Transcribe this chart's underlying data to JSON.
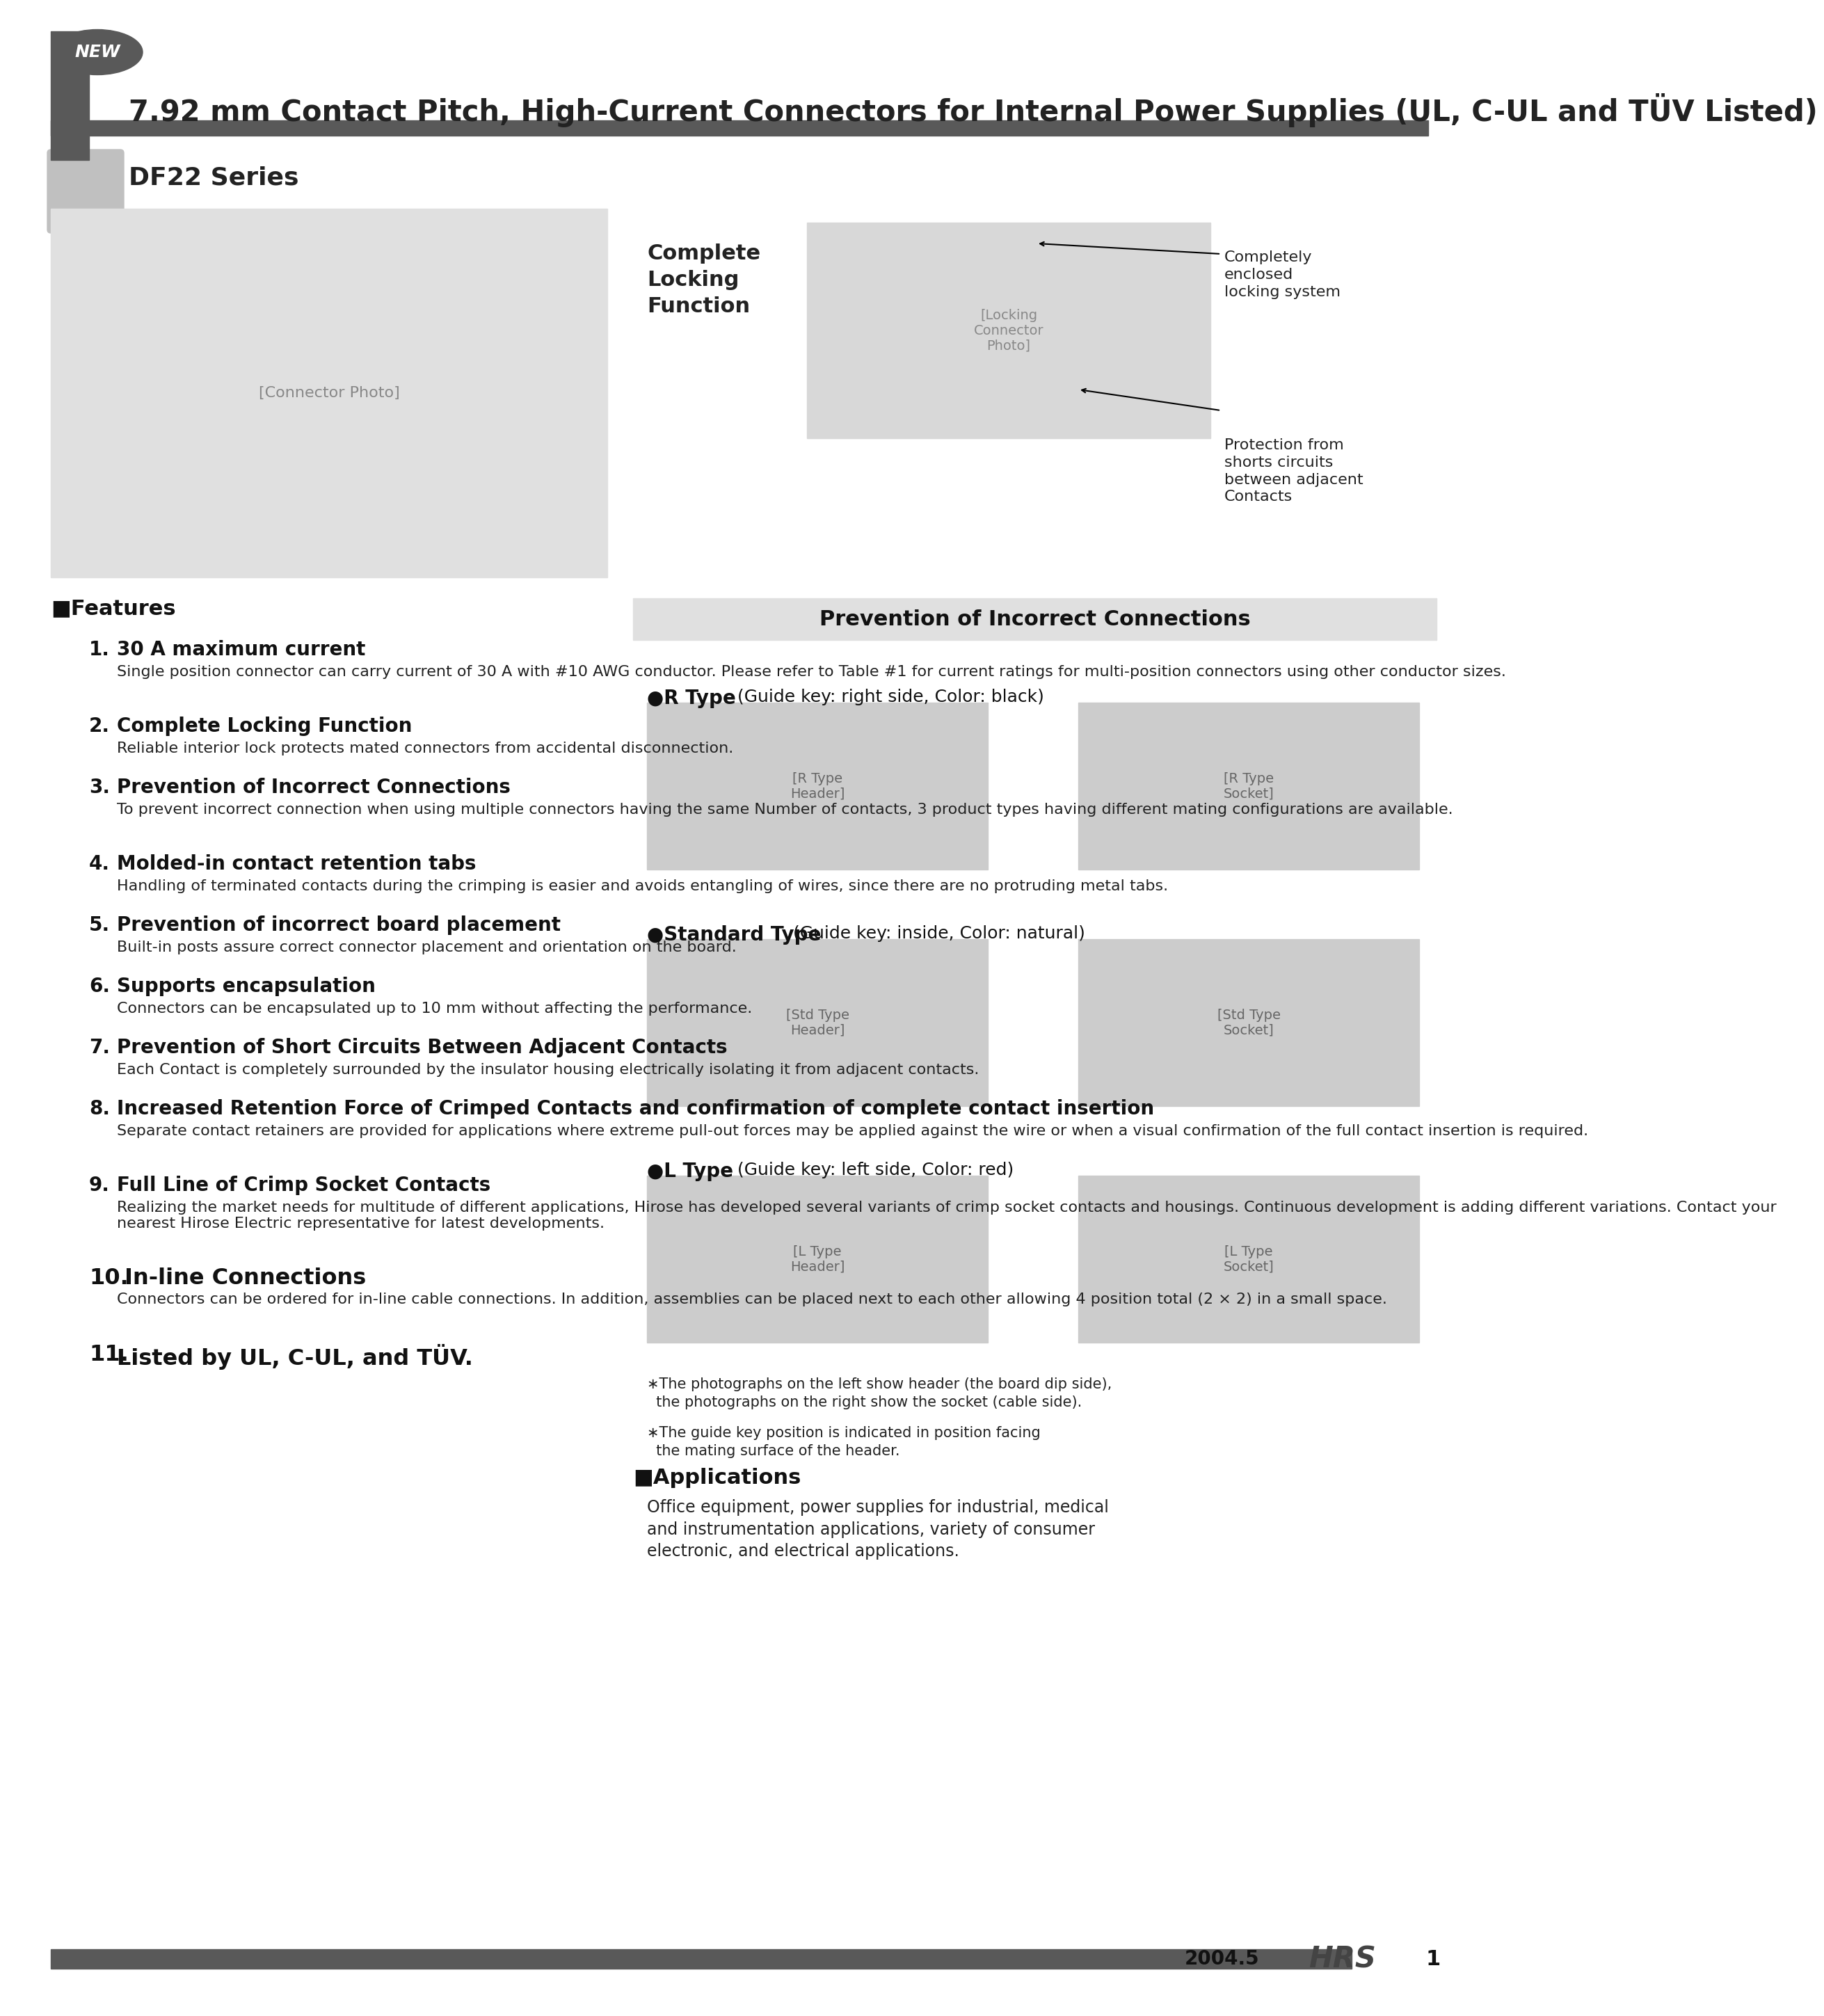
{
  "page_bg": "#ffffff",
  "header_bar_color": "#595959",
  "header_title": "7.92 mm Contact Pitch, High-Current Connectors for Internal Power Supplies (UL, C-UL and TÜV Listed)",
  "series_name": "DF22 Series",
  "new_badge_color": "#595959",
  "section_bar_color": "#595959",
  "features_title": "■Features",
  "features": [
    {
      "num": "1.",
      "title": "30 A maximum current",
      "body": "Single position connector can carry current of 30 A with #10 AWG conductor. Please refer to Table #1 for current ratings for multi-position connectors using other conductor sizes."
    },
    {
      "num": "2.",
      "title": "Complete Locking Function",
      "body": "Reliable interior lock protects mated connectors from accidental disconnection."
    },
    {
      "num": "3.",
      "title": "Prevention of Incorrect Connections",
      "body": "To prevent incorrect connection when using multiple connectors having the same Number of contacts, 3 product types having different mating configurations are available."
    },
    {
      "num": "4.",
      "title": "Molded-in contact retention tabs",
      "body": "Handling of terminated contacts during the crimping is easier and avoids entangling of wires, since there are no protruding metal tabs."
    },
    {
      "num": "5.",
      "title": "Prevention of incorrect board placement",
      "body": "Built-in posts assure correct connector placement and orientation on the board."
    },
    {
      "num": "6.",
      "title": "Supports encapsulation",
      "body": "Connectors can be encapsulated up to 10 mm without affecting the performance."
    },
    {
      "num": "7.",
      "title": "Prevention of Short Circuits Between Adjacent Contacts",
      "body": "Each Contact is completely surrounded by the insulator housing electrically isolating it from adjacent contacts."
    },
    {
      "num": "8.",
      "title": "Increased Retention Force of Crimped Contacts and confirmation of complete contact insertion",
      "body": "Separate contact retainers are provided for applications where extreme pull-out forces may be applied against the wire or when a visual confirmation of the full contact insertion is required."
    },
    {
      "num": "9.",
      "title": "Full Line of Crimp Socket Contacts",
      "body": "Realizing the market needs for multitude of different applications, Hirose has developed several variants of crimp socket contacts and housings. Continuous development is adding different variations. Contact your nearest Hirose Electric representative for latest developments."
    },
    {
      "num": "10.",
      "title": " In-line Connections",
      "body": "Connectors can be ordered for in-line cable connections. In addition, assemblies can be placed next to each other allowing 4 position total (2 × 2) in a small space."
    },
    {
      "num": "11.",
      "title": "Listed by UL, C-UL, and TÜV.",
      "body": ""
    }
  ],
  "prevention_title": "Prevention of Incorrect Connections",
  "r_type_label": "●R Type",
  "r_type_desc": "(Guide key: right side, Color: black)",
  "std_type_label": "●Standard Type",
  "std_type_desc": "(Guide key: inside, Color: natural)",
  "l_type_label": "●L Type",
  "l_type_desc": "(Guide key: left side, Color: red)",
  "complete_locking_title": "Complete\nLocking\nFunction",
  "complete_locking_desc1": "Completely\nenclosed\nlocking system",
  "complete_locking_desc2": "Protection from\nshorts circuits\nbetween adjacent\nContacts",
  "footnote1": "∗The photographs on the left show header (the board dip side),\n  the photographs on the right show the socket (cable side).",
  "footnote2": "∗The guide key position is indicated in position facing\n  the mating surface of the header.",
  "applications_title": "■Applications",
  "applications_body": "Office equipment, power supplies for industrial, medical\nand instrumentation applications, variety of consumer\nelectronic, and electrical applications.",
  "footer_year": "2004.5",
  "footer_page": "1",
  "footer_bar_color": "#595959"
}
